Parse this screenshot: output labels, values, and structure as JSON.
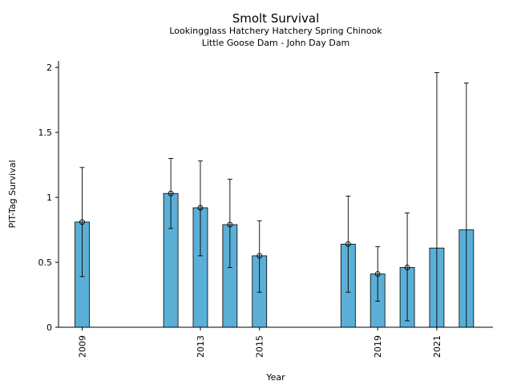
{
  "chart_data": {
    "type": "bar",
    "title": "Smolt Survival",
    "subtitle_lines": [
      "Lookingglass Hatchery Hatchery Spring Chinook",
      "Little Goose Dam - John Day Dam"
    ],
    "xlabel": "Year",
    "ylabel": "PIT-Tag Survival",
    "xlim": [
      2008.2,
      2022.9
    ],
    "ylim": [
      0,
      2.05
    ],
    "x_ticks": [
      2009,
      2013,
      2015,
      2019,
      2021
    ],
    "y_ticks": [
      0,
      0.5,
      1,
      1.5,
      2
    ],
    "y_tick_labels": [
      "0",
      "0.5",
      "1",
      "1.5",
      "2"
    ],
    "grid": false,
    "bar_color": "#5bafd7",
    "edge_color": "#000000",
    "series": [
      {
        "bars": [
          {
            "x": 2009,
            "value": 0.81,
            "ci_low": 0.39,
            "ci_high": 1.23,
            "point": true
          },
          {
            "x": 2012,
            "value": 1.03,
            "ci_low": 0.76,
            "ci_high": 1.3,
            "point": true
          },
          {
            "x": 2013,
            "value": 0.92,
            "ci_low": 0.55,
            "ci_high": 1.28,
            "point": true
          },
          {
            "x": 2014,
            "value": 0.79,
            "ci_low": 0.46,
            "ci_high": 1.14,
            "point": true
          },
          {
            "x": 2015,
            "value": 0.55,
            "ci_low": 0.27,
            "ci_high": 0.82,
            "point": true
          },
          {
            "x": 2018,
            "value": 0.64,
            "ci_low": 0.27,
            "ci_high": 1.01,
            "point": true
          },
          {
            "x": 2019,
            "value": 0.41,
            "ci_low": 0.2,
            "ci_high": 0.62,
            "point": true
          },
          {
            "x": 2020,
            "value": 0.46,
            "ci_low": 0.05,
            "ci_high": 0.88,
            "point": true
          },
          {
            "x": 2021,
            "value": 0.61,
            "ci_low": 0.0,
            "ci_high": 1.96,
            "point": false
          },
          {
            "x": 2022,
            "value": 0.75,
            "ci_low": 0.0,
            "ci_high": 1.88,
            "point": false
          }
        ]
      }
    ]
  }
}
